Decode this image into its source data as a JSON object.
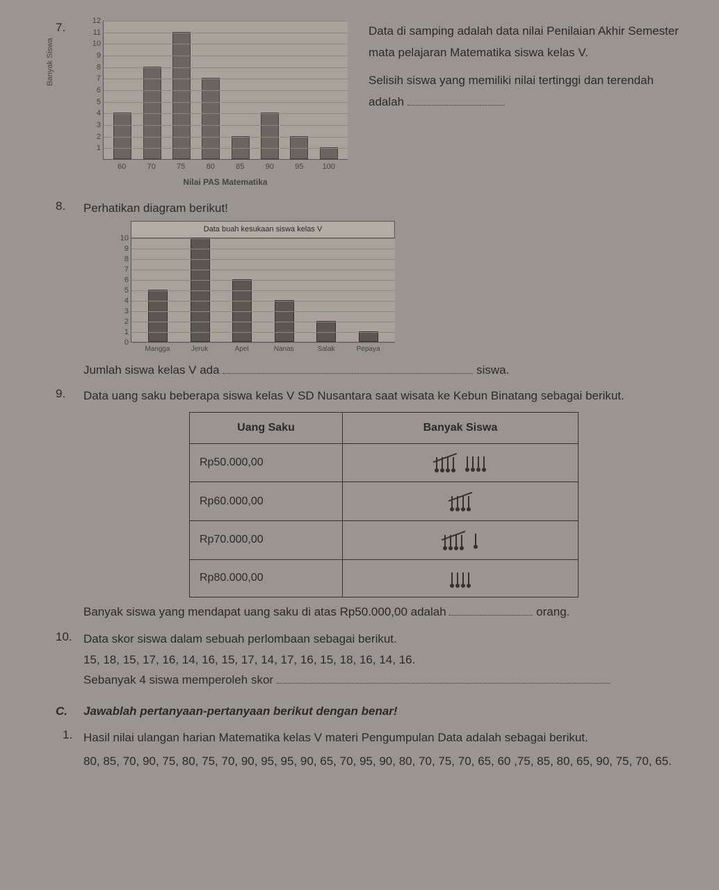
{
  "q7": {
    "number": "7.",
    "text1": "Data di samping adalah data nilai Penilaian Akhir Semester mata pelajaran Matematika siswa kelas V.",
    "text2": "Selisih siswa yang memiliki nilai tertinggi dan terendah adalah",
    "chart": {
      "yaxis_title": "Banyak Siswa",
      "xaxis_title": "Nilai PAS Matematika",
      "ymax": 12,
      "yticks": [
        1,
        2,
        3,
        4,
        5,
        6,
        7,
        8,
        9,
        10,
        11,
        12
      ],
      "categories": [
        "60",
        "70",
        "75",
        "80",
        "85",
        "90",
        "95",
        "100"
      ],
      "values": [
        4,
        8,
        11,
        7,
        2,
        4,
        2,
        1
      ],
      "bar_color": "#6b6560",
      "grid_color": "#888"
    }
  },
  "q8": {
    "number": "8.",
    "text": "Perhatikan diagram berikut!",
    "chart": {
      "title": "Data buah kesukaan siswa kelas V",
      "ymax": 10,
      "yticks": [
        0,
        1,
        2,
        3,
        4,
        5,
        6,
        7,
        8,
        9,
        10
      ],
      "categories": [
        "Mangga",
        "Jeruk",
        "Apel",
        "Nanas",
        "Salak",
        "Pepaya"
      ],
      "values": [
        5,
        10,
        6,
        4,
        2,
        1
      ],
      "bar_color": "#5c5650"
    },
    "footer": "Jumlah siswa kelas V ada",
    "footer_suffix": "siswa."
  },
  "q9": {
    "number": "9.",
    "text": "Data uang saku beberapa siswa kelas V SD Nusantara saat wisata ke Kebun Binatang sebagai berikut.",
    "table": {
      "headers": [
        "Uang Saku",
        "Banyak Siswa"
      ],
      "rows": [
        {
          "label": "Rp50.000,00",
          "count": 9
        },
        {
          "label": "Rp60.000,00",
          "count": 5
        },
        {
          "label": "Rp70.000,00",
          "count": 6
        },
        {
          "label": "Rp80.000,00",
          "count": 4
        }
      ]
    },
    "footer": "Banyak siswa yang mendapat uang saku di atas Rp50.000,00 adalah",
    "footer_suffix": "orang."
  },
  "q10": {
    "number": "10.",
    "text": "Data skor siswa dalam sebuah perlombaan sebagai berikut.",
    "data": "15, 18, 15, 17, 16, 14, 16, 15, 17, 14, 17, 16, 15, 18, 16, 14, 16.",
    "footer": "Sebanyak 4 siswa memperoleh skor"
  },
  "sectionC": {
    "label": "C.",
    "title": "Jawablah pertanyaan-pertanyaan berikut dengan benar!",
    "q1": {
      "number": "1.",
      "text": "Hasil nilai ulangan harian Matematika kelas V materi Pengumpulan Data adalah sebagai berikut.",
      "data": "80, 85, 70, 90, 75, 80, 75, 70, 90, 95, 95, 90, 65, 70, 95, 90, 80, 70, 75, 70, 65, 60 ,75, 85, 80, 65, 90, 75, 70, 65."
    }
  }
}
